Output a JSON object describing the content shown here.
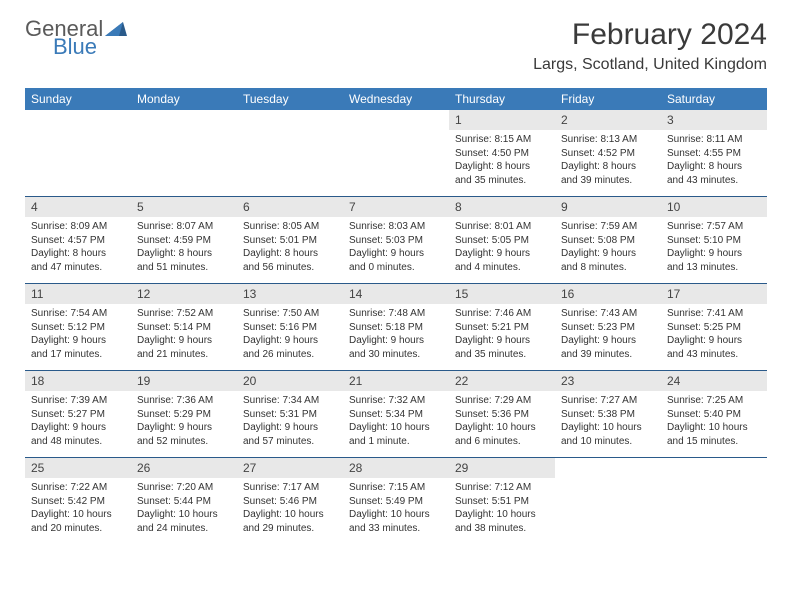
{
  "brand": {
    "word1": "General",
    "word2": "Blue"
  },
  "title": "February 2024",
  "location": "Largs, Scotland, United Kingdom",
  "colors": {
    "header_bg": "#3a7ab8",
    "row_divider": "#2a5a8a",
    "daynum_bg": "#e8e8e8",
    "text": "#333333",
    "brand_gray": "#5a5a5a",
    "brand_blue": "#3a7ab8"
  },
  "day_names": [
    "Sunday",
    "Monday",
    "Tuesday",
    "Wednesday",
    "Thursday",
    "Friday",
    "Saturday"
  ],
  "weeks": [
    [
      null,
      null,
      null,
      null,
      {
        "n": "1",
        "sr": "8:15 AM",
        "ss": "4:50 PM",
        "dl": "8 hours and 35 minutes."
      },
      {
        "n": "2",
        "sr": "8:13 AM",
        "ss": "4:52 PM",
        "dl": "8 hours and 39 minutes."
      },
      {
        "n": "3",
        "sr": "8:11 AM",
        "ss": "4:55 PM",
        "dl": "8 hours and 43 minutes."
      }
    ],
    [
      {
        "n": "4",
        "sr": "8:09 AM",
        "ss": "4:57 PM",
        "dl": "8 hours and 47 minutes."
      },
      {
        "n": "5",
        "sr": "8:07 AM",
        "ss": "4:59 PM",
        "dl": "8 hours and 51 minutes."
      },
      {
        "n": "6",
        "sr": "8:05 AM",
        "ss": "5:01 PM",
        "dl": "8 hours and 56 minutes."
      },
      {
        "n": "7",
        "sr": "8:03 AM",
        "ss": "5:03 PM",
        "dl": "9 hours and 0 minutes."
      },
      {
        "n": "8",
        "sr": "8:01 AM",
        "ss": "5:05 PM",
        "dl": "9 hours and 4 minutes."
      },
      {
        "n": "9",
        "sr": "7:59 AM",
        "ss": "5:08 PM",
        "dl": "9 hours and 8 minutes."
      },
      {
        "n": "10",
        "sr": "7:57 AM",
        "ss": "5:10 PM",
        "dl": "9 hours and 13 minutes."
      }
    ],
    [
      {
        "n": "11",
        "sr": "7:54 AM",
        "ss": "5:12 PM",
        "dl": "9 hours and 17 minutes."
      },
      {
        "n": "12",
        "sr": "7:52 AM",
        "ss": "5:14 PM",
        "dl": "9 hours and 21 minutes."
      },
      {
        "n": "13",
        "sr": "7:50 AM",
        "ss": "5:16 PM",
        "dl": "9 hours and 26 minutes."
      },
      {
        "n": "14",
        "sr": "7:48 AM",
        "ss": "5:18 PM",
        "dl": "9 hours and 30 minutes."
      },
      {
        "n": "15",
        "sr": "7:46 AM",
        "ss": "5:21 PM",
        "dl": "9 hours and 35 minutes."
      },
      {
        "n": "16",
        "sr": "7:43 AM",
        "ss": "5:23 PM",
        "dl": "9 hours and 39 minutes."
      },
      {
        "n": "17",
        "sr": "7:41 AM",
        "ss": "5:25 PM",
        "dl": "9 hours and 43 minutes."
      }
    ],
    [
      {
        "n": "18",
        "sr": "7:39 AM",
        "ss": "5:27 PM",
        "dl": "9 hours and 48 minutes."
      },
      {
        "n": "19",
        "sr": "7:36 AM",
        "ss": "5:29 PM",
        "dl": "9 hours and 52 minutes."
      },
      {
        "n": "20",
        "sr": "7:34 AM",
        "ss": "5:31 PM",
        "dl": "9 hours and 57 minutes."
      },
      {
        "n": "21",
        "sr": "7:32 AM",
        "ss": "5:34 PM",
        "dl": "10 hours and 1 minute."
      },
      {
        "n": "22",
        "sr": "7:29 AM",
        "ss": "5:36 PM",
        "dl": "10 hours and 6 minutes."
      },
      {
        "n": "23",
        "sr": "7:27 AM",
        "ss": "5:38 PM",
        "dl": "10 hours and 10 minutes."
      },
      {
        "n": "24",
        "sr": "7:25 AM",
        "ss": "5:40 PM",
        "dl": "10 hours and 15 minutes."
      }
    ],
    [
      {
        "n": "25",
        "sr": "7:22 AM",
        "ss": "5:42 PM",
        "dl": "10 hours and 20 minutes."
      },
      {
        "n": "26",
        "sr": "7:20 AM",
        "ss": "5:44 PM",
        "dl": "10 hours and 24 minutes."
      },
      {
        "n": "27",
        "sr": "7:17 AM",
        "ss": "5:46 PM",
        "dl": "10 hours and 29 minutes."
      },
      {
        "n": "28",
        "sr": "7:15 AM",
        "ss": "5:49 PM",
        "dl": "10 hours and 33 minutes."
      },
      {
        "n": "29",
        "sr": "7:12 AM",
        "ss": "5:51 PM",
        "dl": "10 hours and 38 minutes."
      },
      null,
      null
    ]
  ],
  "labels": {
    "sunrise": "Sunrise:",
    "sunset": "Sunset:",
    "daylight": "Daylight:"
  }
}
